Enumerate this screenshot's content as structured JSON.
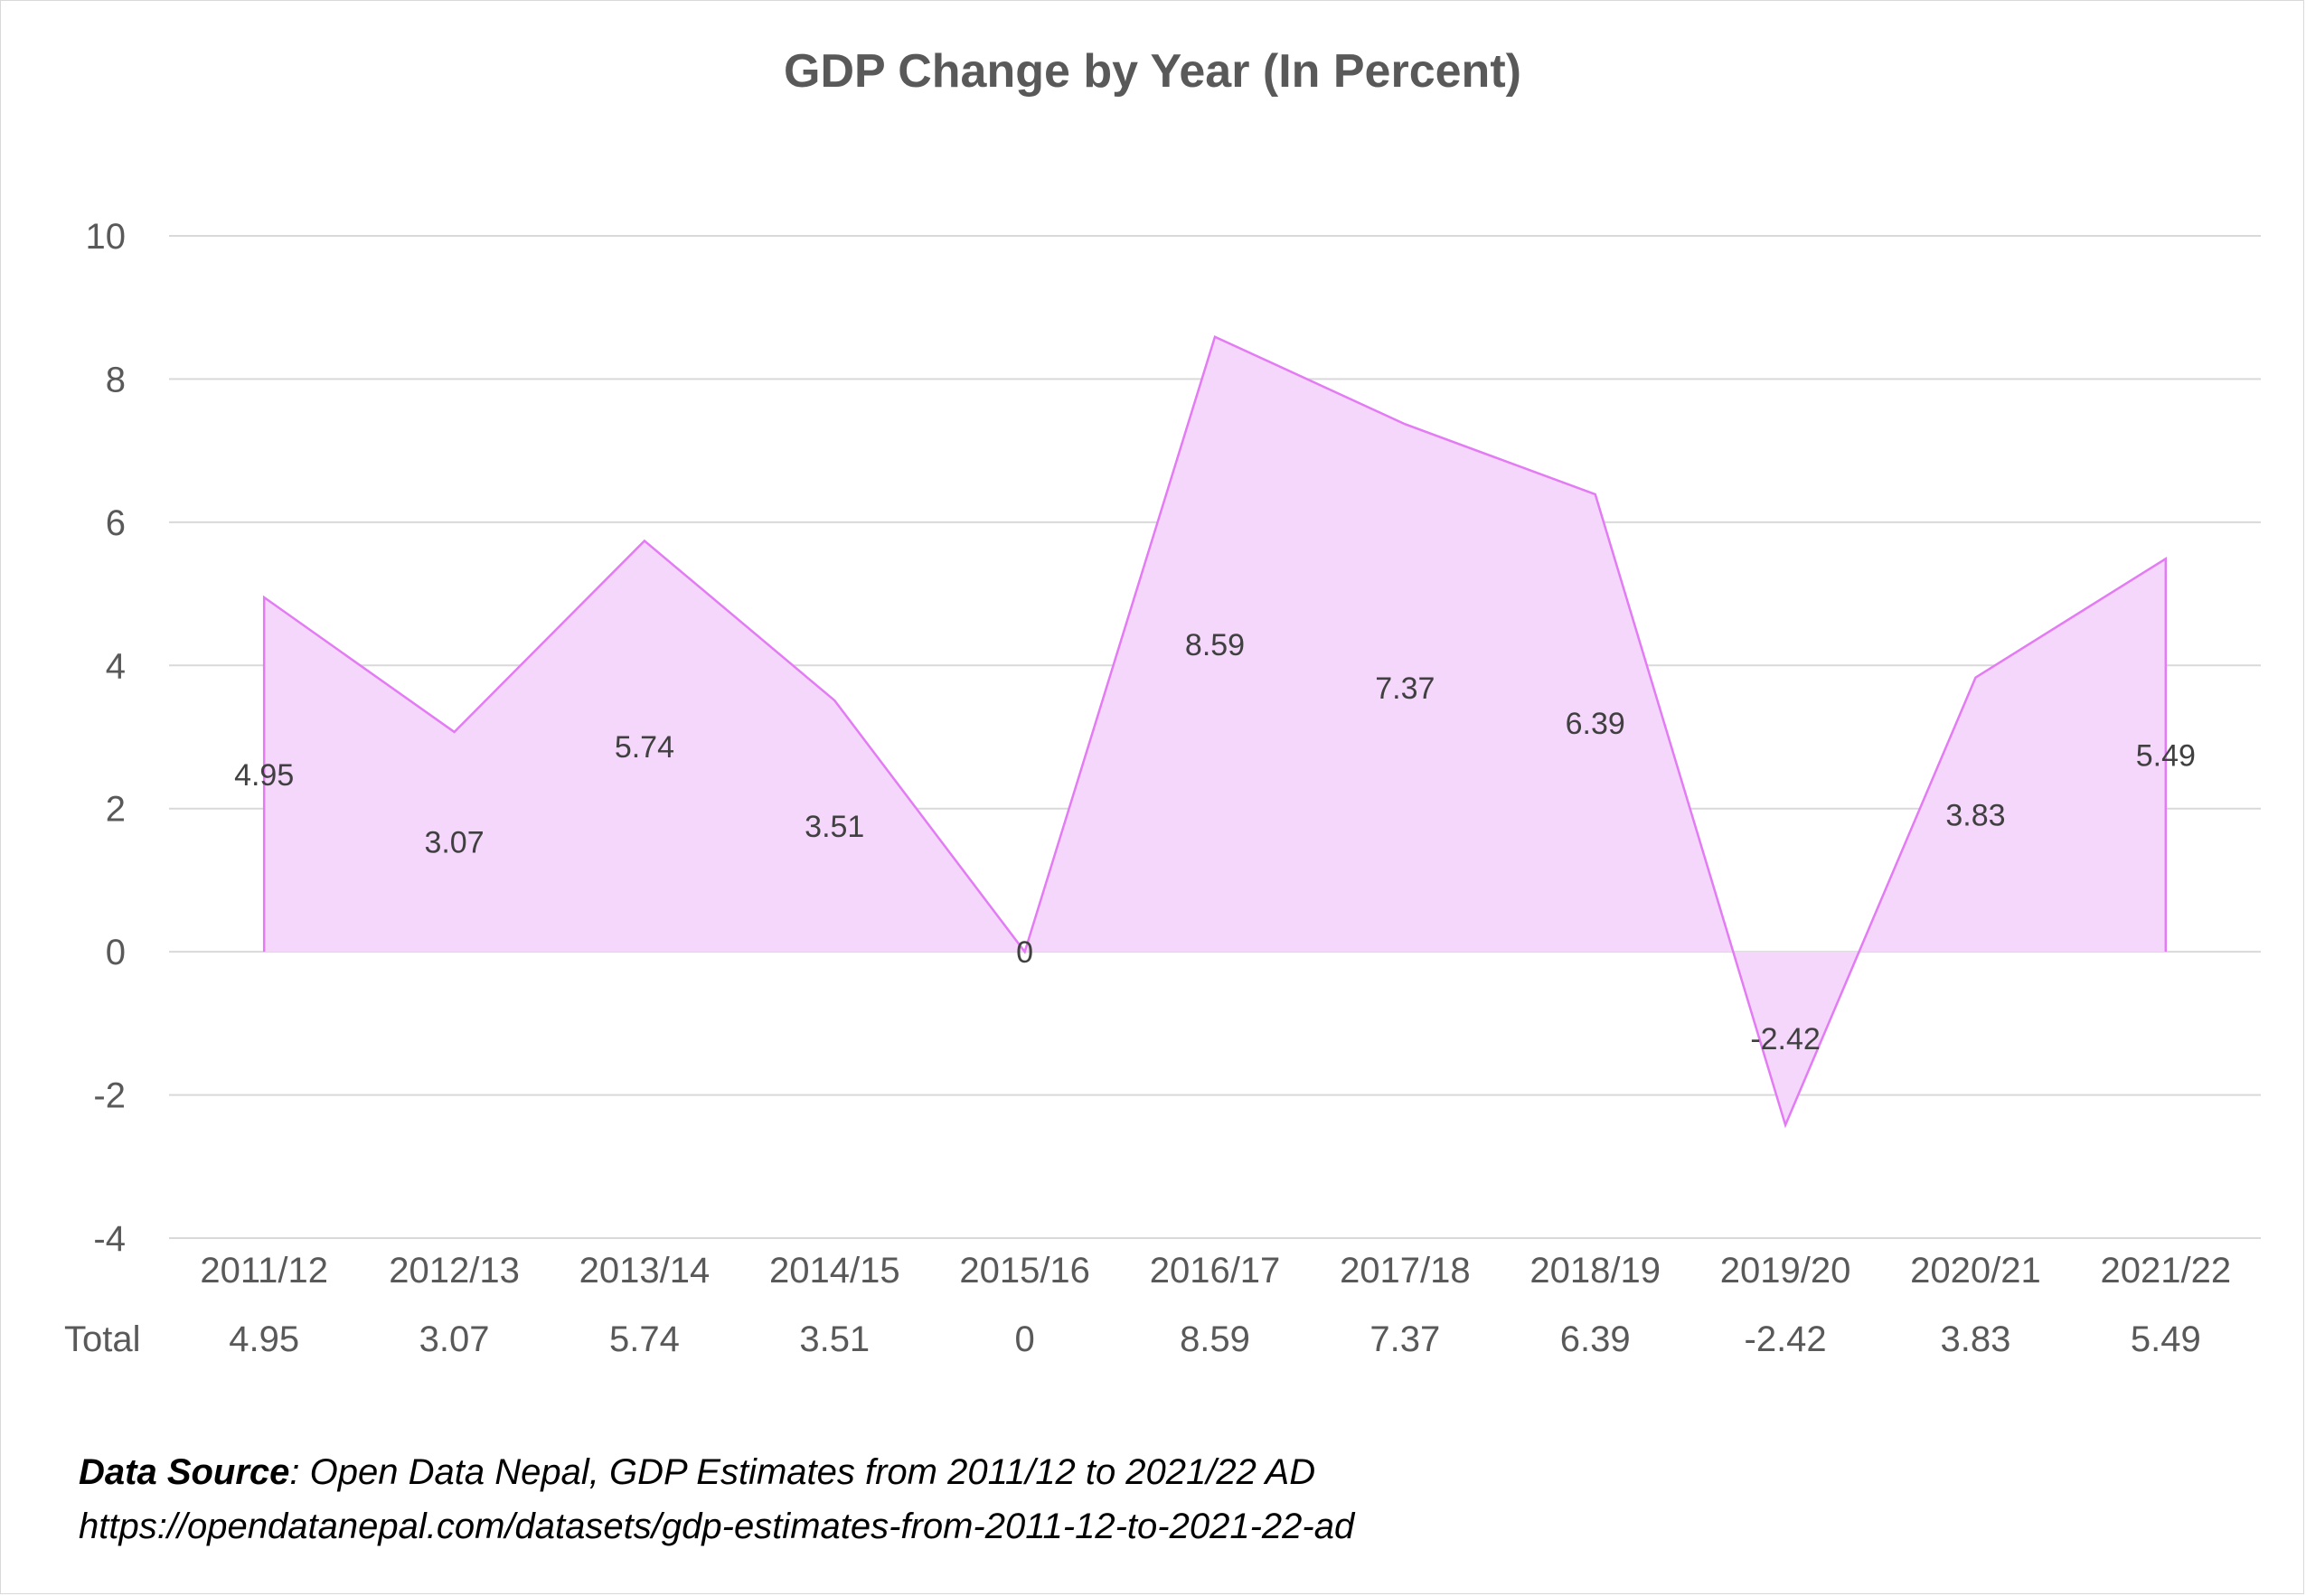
{
  "chart_data": {
    "type": "area",
    "title": "GDP Change by Year (In Percent)",
    "categories": [
      "2011/12",
      "2012/13",
      "2013/14",
      "2014/15",
      "2015/16",
      "2016/17",
      "2017/18",
      "2018/19",
      "2019/20",
      "2020/21",
      "2021/22"
    ],
    "series": [
      {
        "name": "Total",
        "values": [
          4.95,
          3.07,
          5.74,
          3.51,
          0,
          8.59,
          7.37,
          6.39,
          -2.42,
          3.83,
          5.49
        ]
      }
    ],
    "ylim": [
      -4,
      10
    ],
    "yticks": [
      -4,
      -2,
      0,
      2,
      4,
      6,
      8,
      10
    ],
    "xlabel": "",
    "ylabel": "",
    "grid": true,
    "legend": "none",
    "data_table": {
      "row_label": "Total",
      "values": [
        "4.95",
        "3.07",
        "5.74",
        "3.51",
        "0",
        "8.59",
        "7.37",
        "6.39",
        "-2.42",
        "3.83",
        "5.49"
      ]
    },
    "data_labels": [
      "4.95",
      "3.07",
      "5.74",
      "3.51",
      "0",
      "8.59",
      "7.37",
      "6.39",
      "-2.42",
      "3.83",
      "5.49"
    ],
    "colors": {
      "fill": "#f4d7fb",
      "line": "#e27bf4",
      "grid": "#d9d9d9",
      "text": "#595959"
    }
  },
  "source": {
    "label": "Data Source",
    "text": ": Open Data Nepal,  GDP Estimates from 2011/12 to 2021/22 AD",
    "url": "https://opendatanepal.com/datasets/gdp-estimates-from-2011-12-to-2021-22-ad"
  }
}
